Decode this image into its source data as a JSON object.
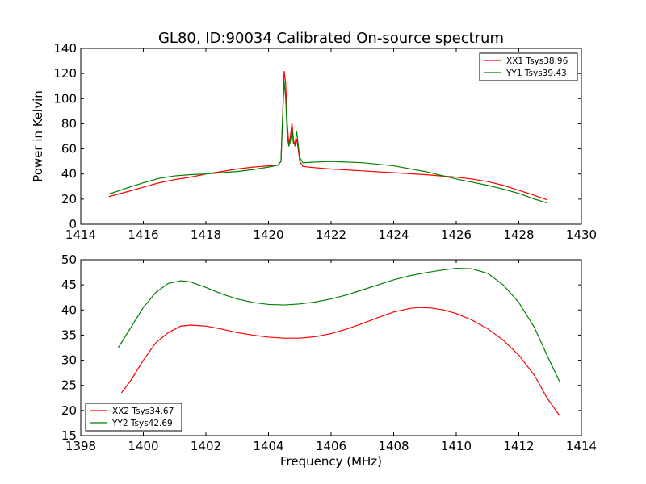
{
  "figure": {
    "title": "GL80, ID:90034 Calibrated On-source spectrum"
  },
  "chart_data": [
    {
      "type": "line",
      "title": "GL80, ID:90034 Calibrated On-source spectrum",
      "xlabel": "",
      "ylabel": "Power in Kelvin",
      "xlim": [
        1414,
        1430
      ],
      "ylim": [
        0,
        140
      ],
      "xticks": [
        "1414",
        "1416",
        "1418",
        "1420",
        "1422",
        "1424",
        "1426",
        "1428",
        "1430"
      ],
      "yticks": [
        "0",
        "20",
        "40",
        "60",
        "80",
        "100",
        "120",
        "140"
      ],
      "grid": false,
      "legend_position": "top-right",
      "series": [
        {
          "name": "XX1 Tsys38.96",
          "color": "#ff0000",
          "points": [
            [
              1414.9,
              22
            ],
            [
              1415.5,
              26
            ],
            [
              1416,
              29.5
            ],
            [
              1416.5,
              33
            ],
            [
              1417,
              35.5
            ],
            [
              1417.5,
              37.5
            ],
            [
              1418,
              40
            ],
            [
              1418.5,
              42
            ],
            [
              1419,
              44
            ],
            [
              1419.5,
              45.5
            ],
            [
              1420,
              46.5
            ],
            [
              1420.3,
              47
            ],
            [
              1420.4,
              50
            ],
            [
              1420.45,
              85
            ],
            [
              1420.5,
              122
            ],
            [
              1420.55,
              112
            ],
            [
              1420.6,
              80
            ],
            [
              1420.65,
              64
            ],
            [
              1420.7,
              70
            ],
            [
              1420.75,
              81
            ],
            [
              1420.8,
              67
            ],
            [
              1420.85,
              62
            ],
            [
              1420.9,
              68
            ],
            [
              1420.95,
              60
            ],
            [
              1421,
              50
            ],
            [
              1421.1,
              46
            ],
            [
              1421.5,
              45
            ],
            [
              1422,
              44
            ],
            [
              1423,
              42.5
            ],
            [
              1424,
              41
            ],
            [
              1425,
              39.5
            ],
            [
              1426,
              37.5
            ],
            [
              1426.5,
              36
            ],
            [
              1427,
              34
            ],
            [
              1427.5,
              31
            ],
            [
              1428,
              27
            ],
            [
              1428.5,
              23
            ],
            [
              1428.9,
              19.5
            ]
          ]
        },
        {
          "name": "YY1 Tsys39.43",
          "color": "#008000",
          "points": [
            [
              1414.9,
              24
            ],
            [
              1415.5,
              29
            ],
            [
              1416,
              33
            ],
            [
              1416.5,
              36.5
            ],
            [
              1417,
              38.5
            ],
            [
              1417.5,
              39.5
            ],
            [
              1418,
              40
            ],
            [
              1418.5,
              41
            ],
            [
              1419,
              42
            ],
            [
              1419.5,
              43.5
            ],
            [
              1420,
              45.5
            ],
            [
              1420.3,
              47
            ],
            [
              1420.4,
              50
            ],
            [
              1420.45,
              85
            ],
            [
              1420.5,
              114
            ],
            [
              1420.55,
              100
            ],
            [
              1420.6,
              70
            ],
            [
              1420.65,
              62
            ],
            [
              1420.7,
              66
            ],
            [
              1420.75,
              76
            ],
            [
              1420.8,
              64
            ],
            [
              1420.85,
              64
            ],
            [
              1420.9,
              74
            ],
            [
              1420.95,
              63
            ],
            [
              1421,
              53
            ],
            [
              1421.1,
              49
            ],
            [
              1421.5,
              49.5
            ],
            [
              1422,
              50
            ],
            [
              1423,
              49
            ],
            [
              1424,
              46.5
            ],
            [
              1425,
              42
            ],
            [
              1426,
              36
            ],
            [
              1426.5,
              33.5
            ],
            [
              1427,
              31
            ],
            [
              1427.5,
              28
            ],
            [
              1428,
              24.5
            ],
            [
              1428.5,
              20
            ],
            [
              1428.9,
              17
            ]
          ]
        }
      ]
    },
    {
      "type": "line",
      "title": "",
      "xlabel": "Frequency (MHz)",
      "ylabel": "",
      "xlim": [
        1398,
        1414
      ],
      "ylim": [
        15,
        50
      ],
      "xticks": [
        "1398",
        "1400",
        "1402",
        "1404",
        "1406",
        "1408",
        "1410",
        "1412",
        "1414"
      ],
      "yticks": [
        "15",
        "20",
        "25",
        "30",
        "35",
        "40",
        "45",
        "50"
      ],
      "grid": false,
      "legend_position": "bottom-left",
      "series": [
        {
          "name": "XX2 Tsys34.67",
          "color": "#ff0000",
          "points": [
            [
              1399.3,
              23.5
            ],
            [
              1399.6,
              26
            ],
            [
              1400,
              30
            ],
            [
              1400.4,
              33.5
            ],
            [
              1400.8,
              35.5
            ],
            [
              1401.2,
              36.8
            ],
            [
              1401.5,
              37
            ],
            [
              1402,
              36.8
            ],
            [
              1402.5,
              36.2
            ],
            [
              1403,
              35.5
            ],
            [
              1403.5,
              35
            ],
            [
              1404,
              34.6
            ],
            [
              1404.5,
              34.4
            ],
            [
              1405,
              34.4
            ],
            [
              1405.5,
              34.7
            ],
            [
              1406,
              35.3
            ],
            [
              1406.5,
              36.2
            ],
            [
              1407,
              37.3
            ],
            [
              1407.5,
              38.5
            ],
            [
              1408,
              39.6
            ],
            [
              1408.5,
              40.3
            ],
            [
              1408.8,
              40.5
            ],
            [
              1409.2,
              40.4
            ],
            [
              1409.6,
              40
            ],
            [
              1410,
              39.3
            ],
            [
              1410.5,
              38
            ],
            [
              1411,
              36.3
            ],
            [
              1411.5,
              34
            ],
            [
              1412,
              31
            ],
            [
              1412.5,
              27
            ],
            [
              1412.9,
              22.5
            ],
            [
              1413.3,
              19
            ]
          ]
        },
        {
          "name": "YY2 Tsys42.69",
          "color": "#008000",
          "points": [
            [
              1399.2,
              32.5
            ],
            [
              1399.6,
              36.5
            ],
            [
              1400,
              40.5
            ],
            [
              1400.4,
              43.5
            ],
            [
              1400.8,
              45.3
            ],
            [
              1401.2,
              45.8
            ],
            [
              1401.5,
              45.6
            ],
            [
              1402,
              44.5
            ],
            [
              1402.5,
              43.2
            ],
            [
              1403,
              42.2
            ],
            [
              1403.5,
              41.5
            ],
            [
              1404,
              41.1
            ],
            [
              1404.5,
              41
            ],
            [
              1405,
              41.2
            ],
            [
              1405.5,
              41.6
            ],
            [
              1406,
              42.2
            ],
            [
              1406.5,
              43
            ],
            [
              1407,
              44
            ],
            [
              1407.5,
              45
            ],
            [
              1408,
              46
            ],
            [
              1408.5,
              46.8
            ],
            [
              1409,
              47.4
            ],
            [
              1409.5,
              47.9
            ],
            [
              1410,
              48.3
            ],
            [
              1410.5,
              48.2
            ],
            [
              1411,
              47.3
            ],
            [
              1411.5,
              45
            ],
            [
              1412,
              41.5
            ],
            [
              1412.5,
              36.5
            ],
            [
              1412.9,
              31
            ],
            [
              1413.3,
              25.8
            ]
          ]
        }
      ]
    }
  ]
}
